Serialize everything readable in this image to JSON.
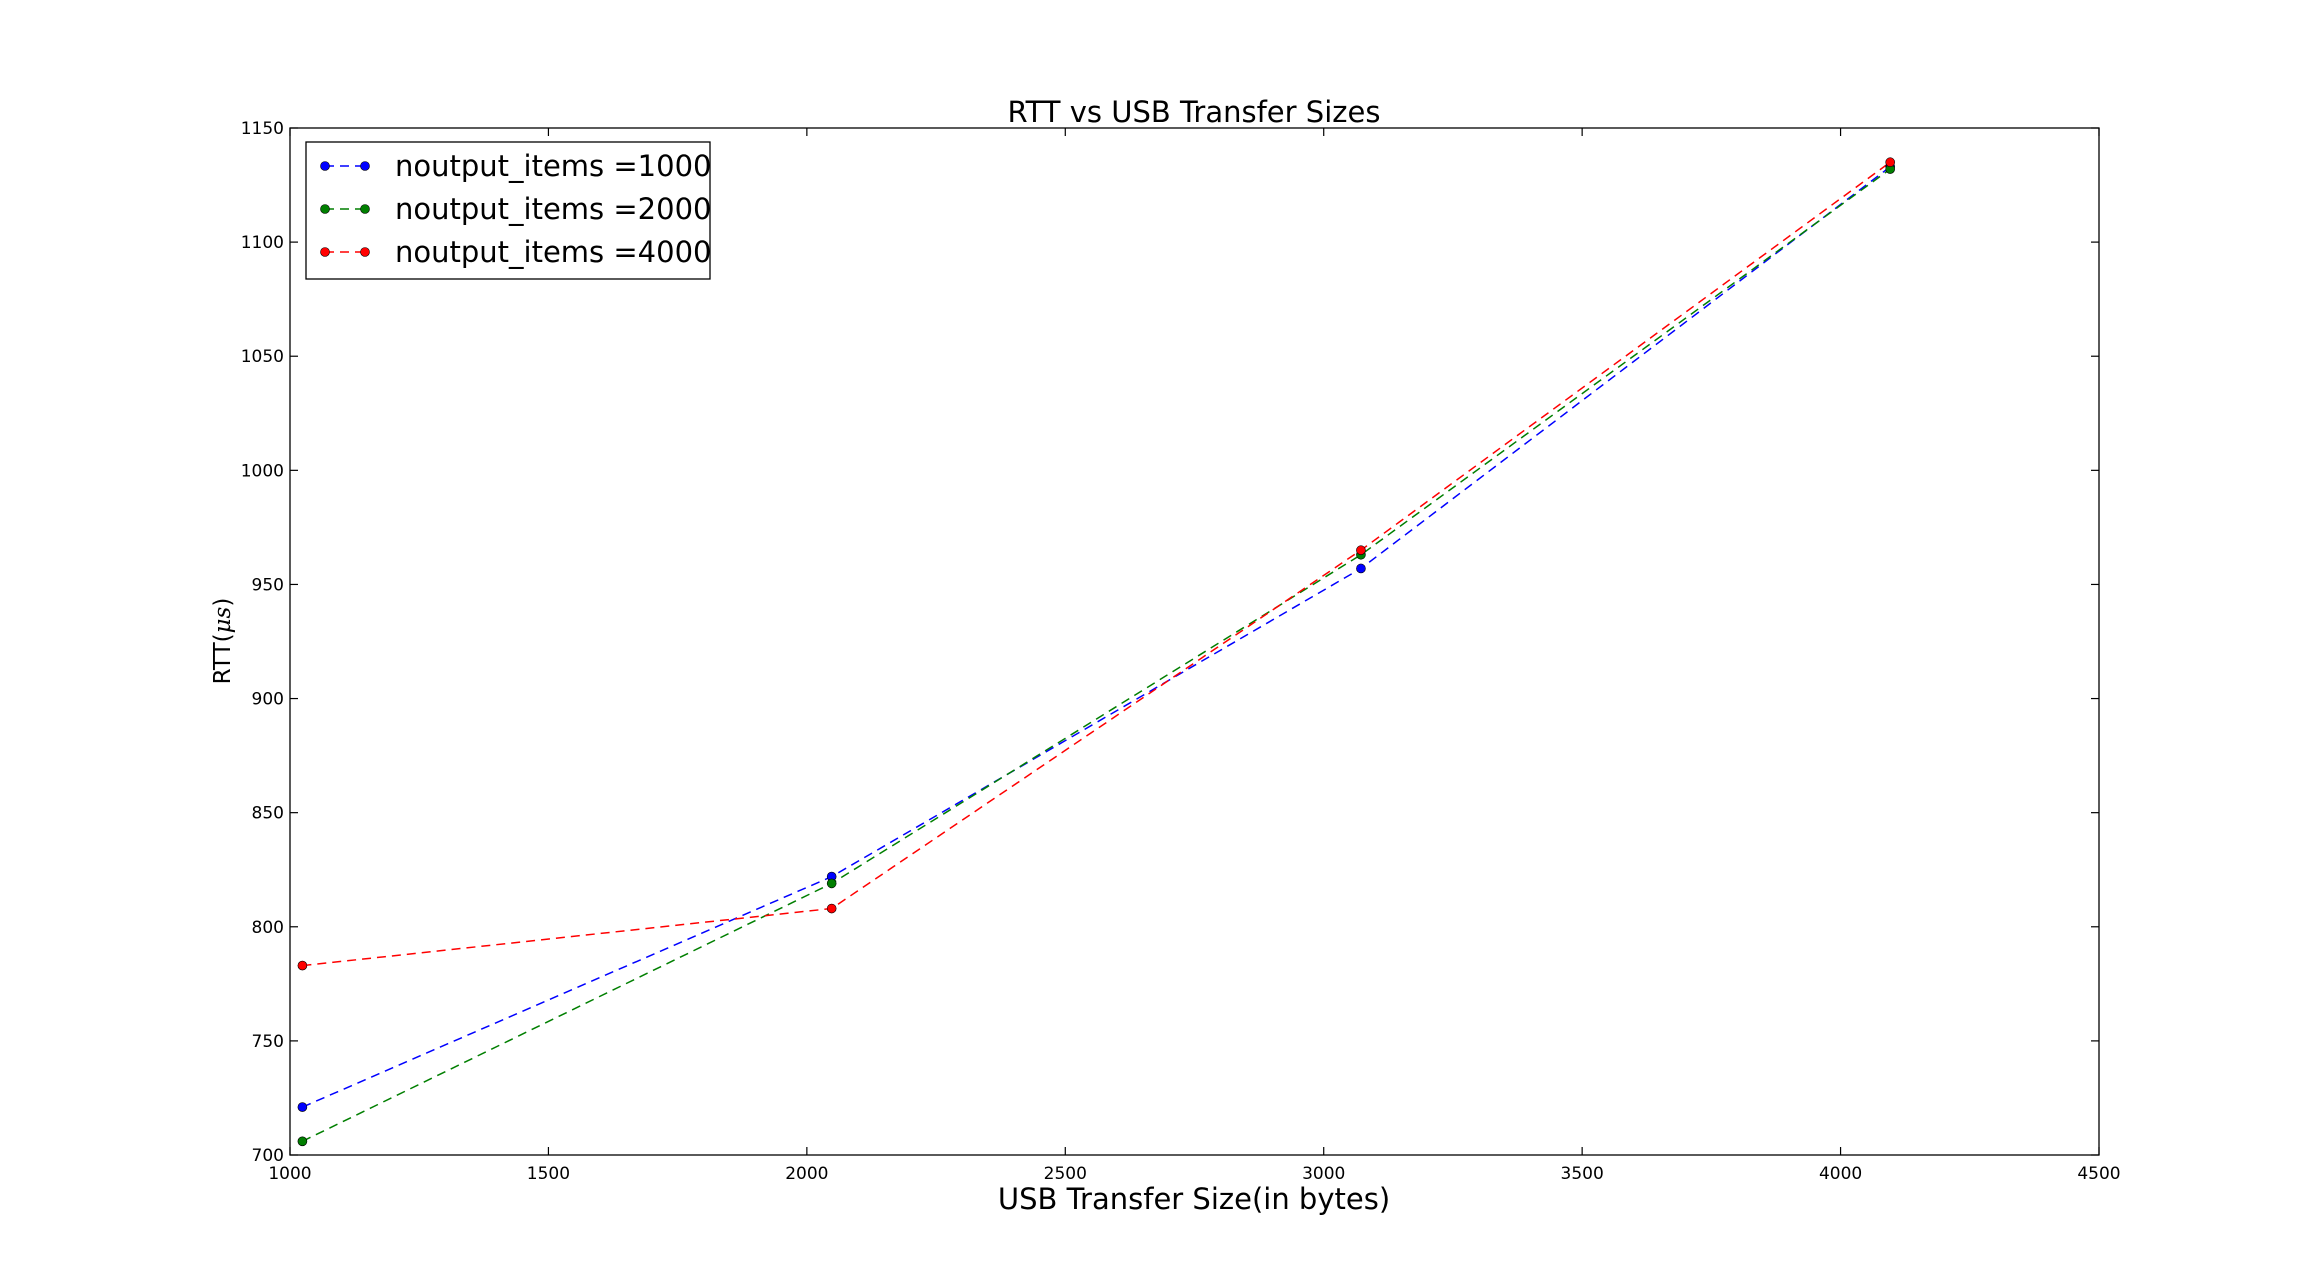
{
  "chart_data": {
    "type": "line",
    "title": "RTT vs USB Transfer Sizes",
    "xlabel": "USB Transfer Size(in bytes)",
    "ylabel_text": "RTT(",
    "ylabel_mu": "μs",
    "ylabel_close": ")",
    "xlim": [
      1000,
      4500
    ],
    "ylim": [
      700,
      1150
    ],
    "xticks": [
      1000,
      1500,
      2000,
      2500,
      3000,
      3500,
      4000,
      4500
    ],
    "yticks": [
      700,
      750,
      800,
      850,
      900,
      950,
      1000,
      1050,
      1100,
      1150
    ],
    "legend_position": "top-left",
    "series": [
      {
        "name": "noutput_items =1000",
        "color": "#0000ff",
        "x": [
          1024,
          2048,
          3072,
          4096
        ],
        "y": [
          721,
          822,
          957,
          1133
        ]
      },
      {
        "name": "noutput_items =2000",
        "color": "#007f00",
        "x": [
          1024,
          2048,
          3072,
          4096
        ],
        "y": [
          706,
          819,
          963,
          1132
        ]
      },
      {
        "name": "noutput_items =4000",
        "color": "#ff0000",
        "x": [
          1024,
          2048,
          3072,
          4096
        ],
        "y": [
          783,
          808,
          965,
          1135
        ]
      }
    ]
  }
}
